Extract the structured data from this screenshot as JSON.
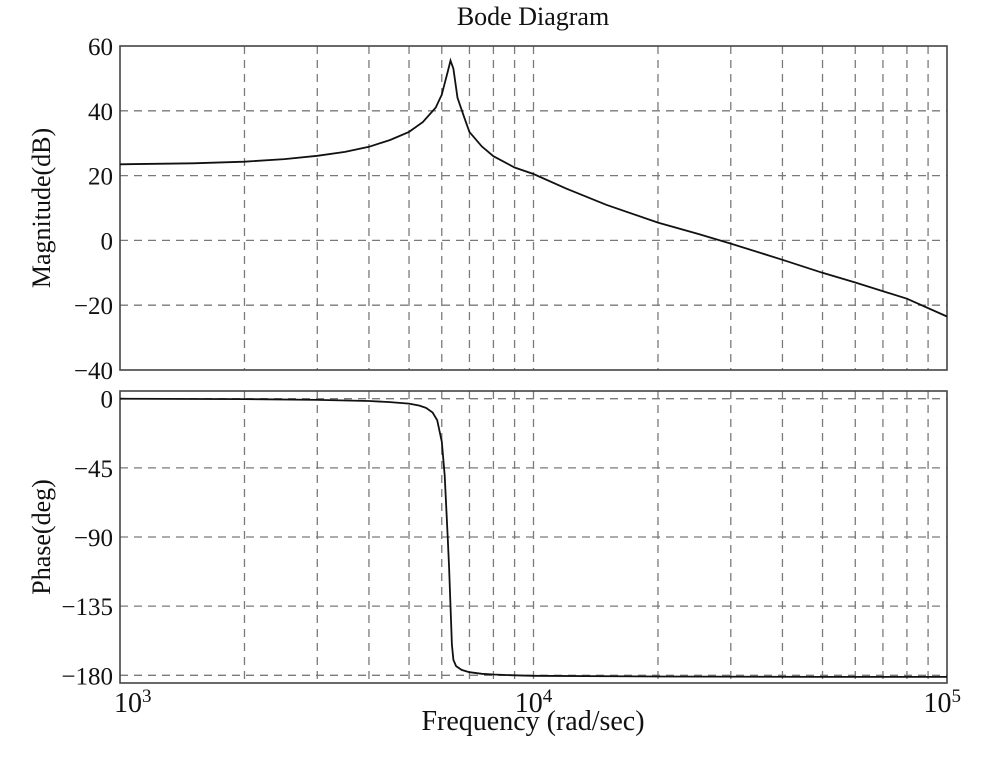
{
  "title": "Bode Diagram",
  "xlabel": "Frequency (rad/sec)",
  "x_ticks": [
    {
      "value": 1000,
      "base": "10",
      "exp": "3"
    },
    {
      "value": 10000,
      "base": "10",
      "exp": "4"
    },
    {
      "value": 100000,
      "base": "10",
      "exp": "5"
    }
  ],
  "chart_data": [
    {
      "type": "line",
      "ylabel": "Magnitude(dB)",
      "xscale": "log",
      "xlim": [
        1000,
        100000
      ],
      "ylim": [
        -40,
        60
      ],
      "yticks": [
        60,
        40,
        20,
        0,
        -20,
        -40
      ],
      "ytick_labels": [
        "60",
        "40",
        "20",
        "0",
        "−20",
        "−40"
      ],
      "grid": true,
      "series": [
        {
          "x": [
            1000,
            1500,
            2000,
            2500,
            3000,
            3500,
            4000,
            4500,
            5000,
            5400,
            5800,
            6000,
            6100,
            6200,
            6300,
            6400,
            6550,
            6800,
            7000,
            7500,
            8000,
            9000,
            10000,
            12000,
            15000,
            20000,
            25000,
            30000,
            40000,
            50000,
            60000,
            80000,
            100000
          ],
          "y": [
            23.5,
            23.8,
            24.3,
            25.1,
            26.1,
            27.3,
            28.9,
            31,
            33.5,
            36.5,
            41,
            45,
            48.5,
            52,
            55.5,
            53,
            44,
            38,
            33.5,
            29,
            26,
            22.5,
            20.5,
            16,
            11,
            5.5,
            2,
            -1,
            -6,
            -10,
            -13,
            -18,
            -23.5
          ]
        }
      ]
    },
    {
      "type": "line",
      "ylabel": "Phase(deg)",
      "xscale": "log",
      "xlim": [
        1000,
        100000
      ],
      "ylim": [
        -185,
        5
      ],
      "yticks": [
        0,
        -45,
        -90,
        -135,
        -180
      ],
      "ytick_labels": [
        "0",
        "−45",
        "−90",
        "−135",
        "−180"
      ],
      "grid": true,
      "series": [
        {
          "x": [
            1000,
            2000,
            3000,
            4000,
            4500,
            5000,
            5300,
            5500,
            5700,
            5850,
            6000,
            6100,
            6200,
            6250,
            6300,
            6350,
            6400,
            6500,
            6700,
            7000,
            7500,
            8000,
            9000,
            10000,
            20000,
            50000,
            100000
          ],
          "y": [
            0,
            -0.3,
            -0.8,
            -1.5,
            -2.2,
            -3.2,
            -4.5,
            -6,
            -9,
            -14,
            -28,
            -50,
            -90,
            -110,
            -135,
            -160,
            -170,
            -174,
            -176.5,
            -178,
            -179,
            -179.5,
            -180,
            -180.3,
            -180.8,
            -181,
            -181
          ]
        }
      ]
    }
  ]
}
